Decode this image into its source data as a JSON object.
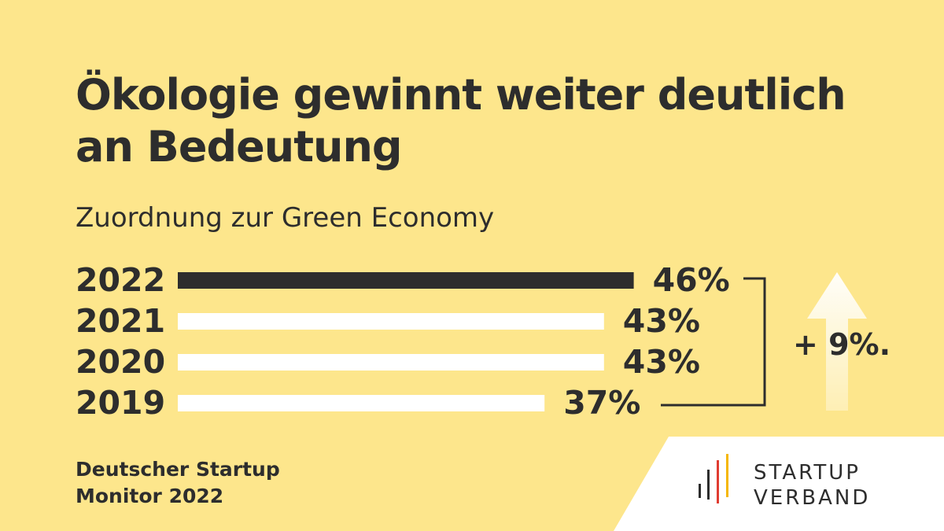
{
  "title": "Ökologie gewinnt weiter deutlich an Bedeutung",
  "subtitle": "Zuordnung zur Green Economy",
  "chart_data": {
    "type": "bar",
    "orientation": "horizontal",
    "title": "Ökologie gewinnt weiter deutlich an Bedeutung",
    "subtitle": "Zuordnung zur Green Economy",
    "categories": [
      "2022",
      "2021",
      "2020",
      "2019"
    ],
    "values": [
      46,
      43,
      43,
      37
    ],
    "value_labels": [
      "46%",
      "43%",
      "43%",
      "37%"
    ],
    "unit": "%",
    "highlight": "2022",
    "change_annotation": "+ 9%.",
    "xlabel": "",
    "ylabel": ""
  },
  "source": {
    "line1": "Deutscher Startup",
    "line2": "Monitor 2022"
  },
  "logo": {
    "line1": "STARTUP",
    "line2": "VERBAND"
  },
  "colors": {
    "background": "#fde68c",
    "highlight_bar": "#2d2d2d",
    "bar": "#ffffff",
    "text": "#2d2d2d",
    "logo_red": "#e03c31",
    "logo_yellow": "#f5b700"
  }
}
